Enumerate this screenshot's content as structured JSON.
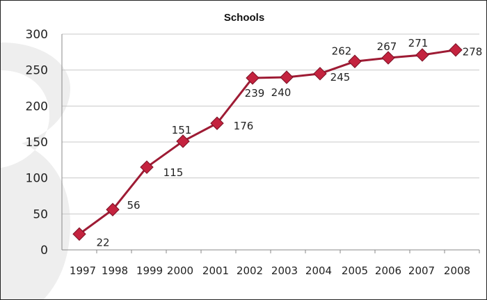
{
  "chart_data": {
    "type": "line",
    "title": "Schools",
    "xlabel": "",
    "ylabel": "",
    "categories": [
      "1997",
      "1998",
      "1999",
      "2000",
      "2001",
      "2002",
      "2003",
      "2004",
      "2005",
      "2006",
      "2007",
      "2008"
    ],
    "series": [
      {
        "values": [
          22,
          56,
          115,
          151,
          176,
          239,
          240,
          245,
          262,
          267,
          271,
          278
        ]
      }
    ],
    "data_labels": [
      "22",
      "56",
      "115",
      "151",
      "176",
      "239",
      "240",
      "245",
      "262",
      "267",
      "271",
      "278"
    ],
    "ylim": [
      0,
      300
    ],
    "yticks": [
      0,
      50,
      100,
      150,
      200,
      250,
      300
    ],
    "grid": true,
    "legend": "none",
    "colors": {
      "line": "#9e1b34",
      "marker": "#c4233f",
      "marker_edge": "#7a1024",
      "grid": "#c8c8c8",
      "watermark": "#eeeeee"
    }
  }
}
